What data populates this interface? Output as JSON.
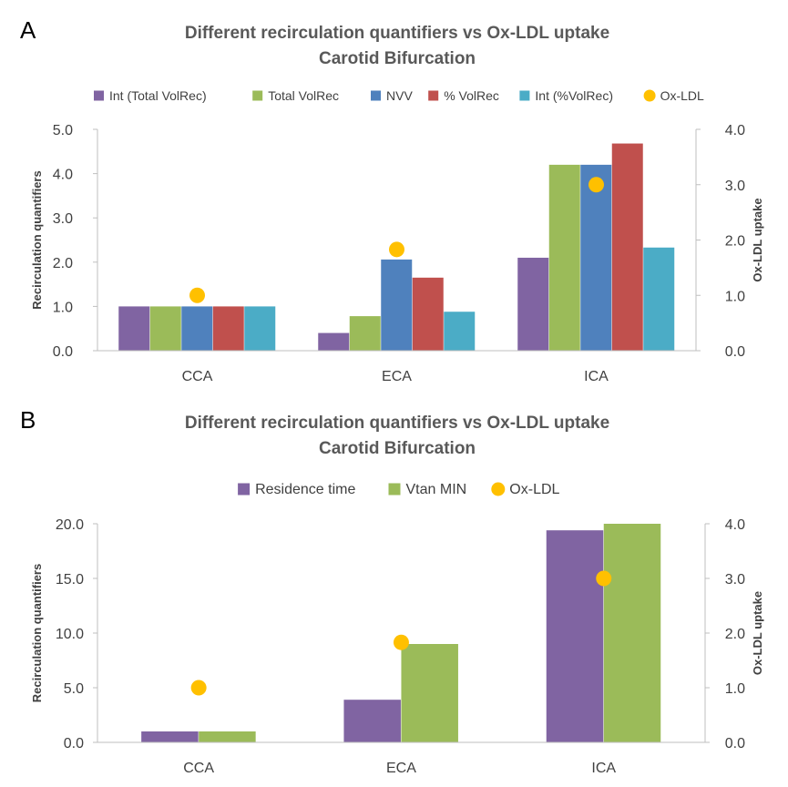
{
  "panels": [
    {
      "letter": "A",
      "title_line1": "Different recirculation quantifiers vs Ox-LDL uptake",
      "title_line2": "Carotid Bifurcation"
    },
    {
      "letter": "B",
      "title_line1": "Different recirculation quantifiers vs Ox-LDL uptake",
      "title_line2": "Carotid Bifurcation"
    }
  ],
  "chart_data": [
    {
      "type": "bar",
      "title": "Different recirculation quantifiers vs Ox-LDL uptake Carotid Bifurcation",
      "categories": [
        "CCA",
        "ECA",
        "ICA"
      ],
      "ylabel": "Recirculation quantifiers",
      "y2label": "Ox-LDL uptake",
      "ylim": [
        0,
        5
      ],
      "y2lim": [
        0,
        4
      ],
      "yticks": [
        "0.0",
        "1.0",
        "2.0",
        "3.0",
        "4.0",
        "5.0"
      ],
      "y2ticks": [
        "0.0",
        "1.0",
        "2.0",
        "3.0",
        "4.0"
      ],
      "legend_position": "top",
      "grid": false,
      "series": [
        {
          "name": "Int (Total VolRec)",
          "color": "#8064A2",
          "values": [
            1.0,
            0.4,
            2.1
          ]
        },
        {
          "name": "Total VolRec",
          "color": "#9BBB59",
          "values": [
            1.0,
            0.78,
            4.2
          ]
        },
        {
          "name": "NVV",
          "color": "#4F81BD",
          "values": [
            1.0,
            2.06,
            4.2
          ]
        },
        {
          "name": "% VolRec",
          "color": "#C0504D",
          "values": [
            1.0,
            1.65,
            4.68
          ]
        },
        {
          "name": "Int (%VolRec)",
          "color": "#4BACC6",
          "values": [
            1.0,
            0.88,
            2.33
          ]
        }
      ],
      "secondary_series": {
        "name": "Ox-LDL",
        "color": "#FFC000",
        "type": "scatter",
        "values": [
          1.0,
          1.83,
          3.0
        ]
      }
    },
    {
      "type": "bar",
      "title": "Different recirculation quantifiers vs Ox-LDL uptake Carotid Bifurcation",
      "categories": [
        "CCA",
        "ECA",
        "ICA"
      ],
      "ylabel": "Recirculation quantifiers",
      "y2label": "Ox-LDL uptake",
      "ylim": [
        0,
        20
      ],
      "y2lim": [
        0,
        4
      ],
      "yticks": [
        "0.0",
        "5.0",
        "10.0",
        "15.0",
        "20.0"
      ],
      "y2ticks": [
        "0.0",
        "1.0",
        "2.0",
        "3.0",
        "4.0"
      ],
      "legend_position": "top",
      "grid": false,
      "series": [
        {
          "name": "Residence time",
          "color": "#8064A2",
          "values": [
            1.0,
            3.9,
            19.4
          ]
        },
        {
          "name": "Vtan MIN",
          "color": "#9BBB59",
          "values": [
            1.0,
            9.0,
            20.0
          ]
        }
      ],
      "secondary_series": {
        "name": "Ox-LDL",
        "color": "#FFC000",
        "type": "scatter",
        "values": [
          1.0,
          1.83,
          3.0
        ]
      }
    }
  ]
}
